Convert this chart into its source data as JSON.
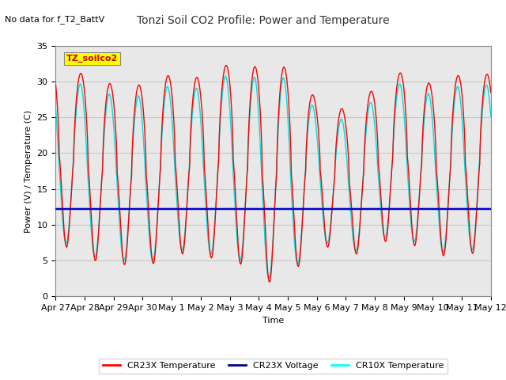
{
  "title": "Tonzi Soil CO2 Profile: Power and Temperature",
  "subtitle": "No data for f_T2_BattV",
  "ylabel": "Power (V) / Temperature (C)",
  "xlabel": "Time",
  "ylim": [
    0,
    35
  ],
  "yticks": [
    0,
    5,
    10,
    15,
    20,
    25,
    30,
    35
  ],
  "date_labels": [
    "Apr 27",
    "Apr 28",
    "Apr 29",
    "Apr 30",
    "May 1",
    "May 2",
    "May 3",
    "May 4",
    "May 5",
    "May 6",
    "May 7",
    "May 8",
    "May 9",
    "May 10",
    "May 11",
    "May 12"
  ],
  "legend_label_box": "TZ_soilco2",
  "legend_entries": [
    "CR23X Temperature",
    "CR23X Voltage",
    "CR10X Temperature"
  ],
  "legend_colors": [
    "#ff0000",
    "#00008b",
    "#00ffff"
  ],
  "cr23x_temp_color": "#ff0000",
  "cr23x_voltage_color": "#0000cc",
  "cr10x_temp_color": "#00dddd",
  "voltage_value": 12.2,
  "background_color": "#ffffff",
  "plot_bg_color": "#e8e8e8",
  "grid_color": "#c8c8c8",
  "annotation_box_color": "#ffff00",
  "annotation_text_color": "#cc0000",
  "title_fontsize": 10,
  "subtitle_fontsize": 8,
  "axis_label_fontsize": 8,
  "tick_fontsize": 8,
  "legend_fontsize": 8
}
